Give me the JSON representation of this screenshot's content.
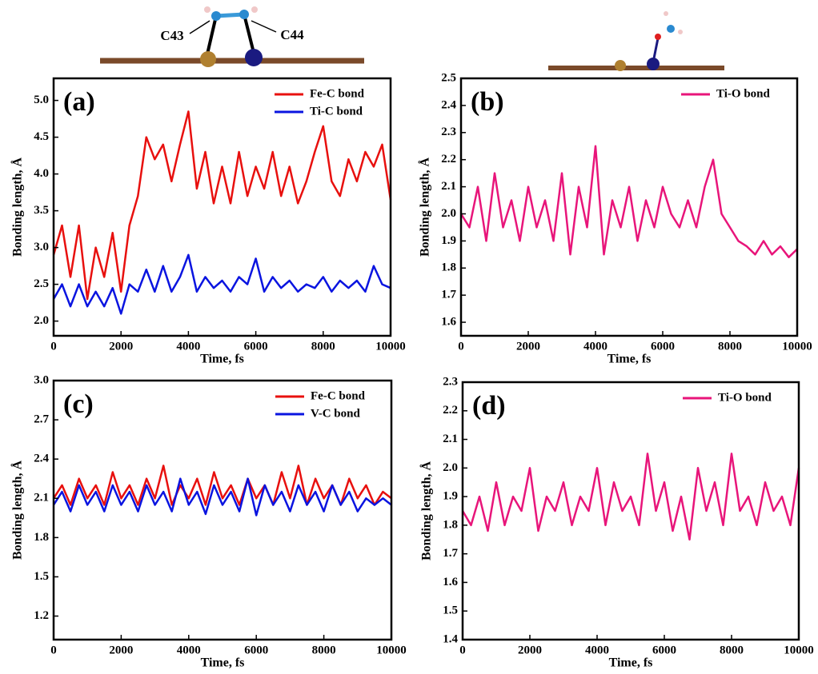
{
  "chart_data": [
    {
      "type": "line",
      "panel_label": "(a)",
      "annotations": [
        "C43",
        "C44"
      ],
      "xlabel": "Time, fs",
      "ylabel": "Bonding length, Å",
      "x": [
        0,
        250,
        500,
        750,
        1000,
        1250,
        1500,
        1750,
        2000,
        2250,
        2500,
        2750,
        3000,
        3250,
        3500,
        3750,
        4000,
        4250,
        4500,
        4750,
        5000,
        5250,
        5500,
        5750,
        6000,
        6250,
        6500,
        6750,
        7000,
        7250,
        7500,
        7750,
        8000,
        8250,
        8500,
        8750,
        9000,
        9250,
        9500,
        9750,
        10000
      ],
      "series": [
        {
          "name": "Fe-C bond",
          "color": "#e8100e",
          "values": [
            2.9,
            3.3,
            2.6,
            3.3,
            2.3,
            3.0,
            2.6,
            3.2,
            2.4,
            3.3,
            3.7,
            4.5,
            4.2,
            4.4,
            3.9,
            4.4,
            4.85,
            3.8,
            4.3,
            3.6,
            4.1,
            3.6,
            4.3,
            3.7,
            4.1,
            3.8,
            4.3,
            3.7,
            4.1,
            3.6,
            3.9,
            4.3,
            4.65,
            3.9,
            3.7,
            4.2,
            3.9,
            4.3,
            4.1,
            4.4,
            3.65
          ]
        },
        {
          "name": "Ti-C bond",
          "color": "#0a14e0",
          "values": [
            2.3,
            2.5,
            2.2,
            2.5,
            2.2,
            2.4,
            2.2,
            2.45,
            2.1,
            2.5,
            2.4,
            2.7,
            2.4,
            2.75,
            2.4,
            2.6,
            2.9,
            2.4,
            2.6,
            2.45,
            2.55,
            2.4,
            2.6,
            2.5,
            2.85,
            2.4,
            2.6,
            2.45,
            2.55,
            2.4,
            2.5,
            2.45,
            2.6,
            2.4,
            2.55,
            2.45,
            2.55,
            2.4,
            2.75,
            2.5,
            2.45
          ]
        }
      ],
      "xlim": [
        0,
        10000
      ],
      "xticks": [
        0,
        2000,
        4000,
        6000,
        8000,
        10000
      ],
      "ylim": [
        1.8,
        5.3
      ],
      "yticks": [
        {
          "value": 2,
          "label": "2.0"
        },
        2.5,
        {
          "value": 3,
          "label": "3.0"
        },
        3.5,
        {
          "value": 4,
          "label": "4.0"
        },
        4.5,
        {
          "value": 5,
          "label": "5.0"
        }
      ],
      "legend": "upper right"
    },
    {
      "type": "line",
      "panel_label": "(b)",
      "xlabel": "Time, fs",
      "ylabel": "Bonding length, Å",
      "x": [
        0,
        250,
        500,
        750,
        1000,
        1250,
        1500,
        1750,
        2000,
        2250,
        2500,
        2750,
        3000,
        3250,
        3500,
        3750,
        4000,
        4250,
        4500,
        4750,
        5000,
        5250,
        5500,
        5750,
        6000,
        6250,
        6500,
        6750,
        7000,
        7250,
        7500,
        7750,
        8000,
        8250,
        8500,
        8750,
        9000,
        9250,
        9500,
        9750,
        10000
      ],
      "series": [
        {
          "name": "Ti-O bond",
          "color": "#e8157a",
          "values": [
            2.0,
            1.95,
            2.1,
            1.9,
            2.15,
            1.95,
            2.05,
            1.9,
            2.1,
            1.95,
            2.05,
            1.9,
            2.15,
            1.85,
            2.1,
            1.95,
            2.25,
            1.85,
            2.05,
            1.95,
            2.1,
            1.9,
            2.05,
            1.95,
            2.1,
            2.0,
            1.95,
            2.05,
            1.95,
            2.1,
            2.2,
            2.0,
            1.95,
            1.9,
            1.88,
            1.85,
            1.9,
            1.85,
            1.88,
            1.84,
            1.87
          ]
        }
      ],
      "xlim": [
        0,
        10000
      ],
      "xticks": [
        0,
        2000,
        4000,
        6000,
        8000,
        10000
      ],
      "ylim": [
        1.55,
        2.5
      ],
      "yticks": [
        1.6,
        1.7,
        1.8,
        1.9,
        {
          "value": 2,
          "label": "2.0"
        },
        2.1,
        2.2,
        2.3,
        2.4,
        2.5
      ],
      "legend": "upper right"
    },
    {
      "type": "line",
      "panel_label": "(c)",
      "xlabel": "Time, fs",
      "ylabel": "Bonding length, Å",
      "x": [
        0,
        250,
        500,
        750,
        1000,
        1250,
        1500,
        1750,
        2000,
        2250,
        2500,
        2750,
        3000,
        3250,
        3500,
        3750,
        4000,
        4250,
        4500,
        4750,
        5000,
        5250,
        5500,
        5750,
        6000,
        6250,
        6500,
        6750,
        7000,
        7250,
        7500,
        7750,
        8000,
        8250,
        8500,
        8750,
        9000,
        9250,
        9500,
        9750,
        10000
      ],
      "series": [
        {
          "name": "Fe-C bond",
          "color": "#e8100e",
          "values": [
            2.1,
            2.2,
            2.05,
            2.25,
            2.1,
            2.2,
            2.05,
            2.3,
            2.1,
            2.2,
            2.05,
            2.25,
            2.1,
            2.35,
            2.05,
            2.2,
            2.1,
            2.25,
            2.05,
            2.3,
            2.1,
            2.2,
            2.05,
            2.25,
            2.1,
            2.2,
            2.05,
            2.3,
            2.1,
            2.35,
            2.05,
            2.25,
            2.1,
            2.2,
            2.05,
            2.25,
            2.1,
            2.2,
            2.05,
            2.15,
            2.1
          ]
        },
        {
          "name": "V-C bond",
          "color": "#0a14e0",
          "values": [
            2.05,
            2.15,
            2.0,
            2.2,
            2.05,
            2.15,
            2.0,
            2.2,
            2.05,
            2.15,
            2.0,
            2.2,
            2.05,
            2.15,
            2.0,
            2.25,
            2.05,
            2.15,
            1.98,
            2.2,
            2.05,
            2.15,
            2.0,
            2.25,
            1.97,
            2.2,
            2.05,
            2.15,
            2.0,
            2.2,
            2.05,
            2.15,
            2.0,
            2.2,
            2.05,
            2.15,
            2.0,
            2.1,
            2.05,
            2.1,
            2.05
          ]
        }
      ],
      "xlim": [
        0,
        10000
      ],
      "xticks": [
        0,
        2000,
        4000,
        6000,
        8000,
        10000
      ],
      "ylim": [
        1.02,
        3.0
      ],
      "yticks": [
        1.2,
        1.5,
        1.8,
        2.1,
        2.4,
        2.7,
        {
          "value": 3,
          "label": "3.0"
        }
      ],
      "legend": "upper right"
    },
    {
      "type": "line",
      "panel_label": "(d)",
      "xlabel": "Time, fs",
      "ylabel": "Bonding length, Å",
      "x": [
        0,
        250,
        500,
        750,
        1000,
        1250,
        1500,
        1750,
        2000,
        2250,
        2500,
        2750,
        3000,
        3250,
        3500,
        3750,
        4000,
        4250,
        4500,
        4750,
        5000,
        5250,
        5500,
        5750,
        6000,
        6250,
        6500,
        6750,
        7000,
        7250,
        7500,
        7750,
        8000,
        8250,
        8500,
        8750,
        9000,
        9250,
        9500,
        9750,
        10000
      ],
      "series": [
        {
          "name": "Ti-O bond",
          "color": "#e8157a",
          "values": [
            1.85,
            1.8,
            1.9,
            1.78,
            1.95,
            1.8,
            1.9,
            1.85,
            2.0,
            1.78,
            1.9,
            1.85,
            1.95,
            1.8,
            1.9,
            1.85,
            2.0,
            1.8,
            1.95,
            1.85,
            1.9,
            1.8,
            2.05,
            1.85,
            1.95,
            1.78,
            1.9,
            1.75,
            2.0,
            1.85,
            1.95,
            1.8,
            2.05,
            1.85,
            1.9,
            1.8,
            1.95,
            1.85,
            1.9,
            1.8,
            2.0
          ]
        }
      ],
      "xlim": [
        0,
        10000
      ],
      "xticks": [
        0,
        2000,
        4000,
        6000,
        8000,
        10000
      ],
      "ylim": [
        1.4,
        2.3
      ],
      "yticks": [
        1.4,
        1.5,
        1.6,
        1.7,
        1.8,
        1.9,
        {
          "value": 2,
          "label": "2.0"
        },
        2.1,
        2.2,
        2.3
      ],
      "legend": "upper right"
    }
  ]
}
